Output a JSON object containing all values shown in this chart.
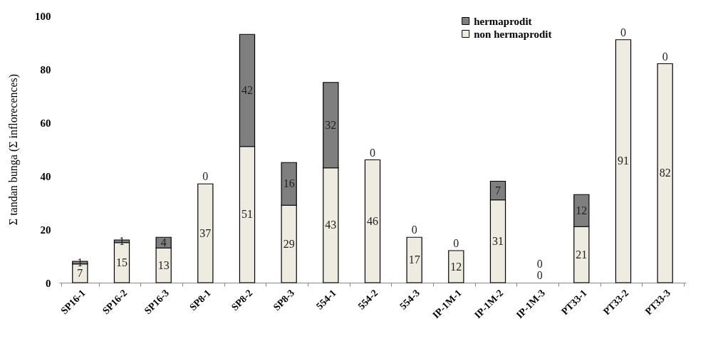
{
  "chart_data": {
    "type": "bar",
    "stacked": true,
    "ylabel": "Σ tandan bunga (Σ inflorecences)",
    "categories": [
      "SP16-1",
      "SP16-2",
      "SP16-3",
      "SP8-1",
      "SP8-2",
      "SP8-3",
      "554-1",
      "554-2",
      "554-3",
      "IP-1M-1",
      "IP-1M-2",
      "IP-1M-3",
      "PT33-1",
      "PT33-2",
      "PT33-3"
    ],
    "series": [
      {
        "name": "non hermaprodit",
        "color": "#eeebe0",
        "values": [
          7,
          15,
          13,
          37,
          51,
          29,
          43,
          46,
          17,
          12,
          31,
          0,
          21,
          91,
          82
        ]
      },
      {
        "name": "hermaprodit",
        "color": "#7f7f7f",
        "values": [
          1,
          1,
          4,
          0,
          42,
          16,
          32,
          0,
          0,
          0,
          7,
          0,
          12,
          0,
          0
        ]
      }
    ],
    "ylim": [
      0,
      100
    ],
    "yticks": [
      0,
      20,
      40,
      60,
      80,
      100
    ],
    "data_labels": true,
    "legend": "top right",
    "grid": false
  }
}
